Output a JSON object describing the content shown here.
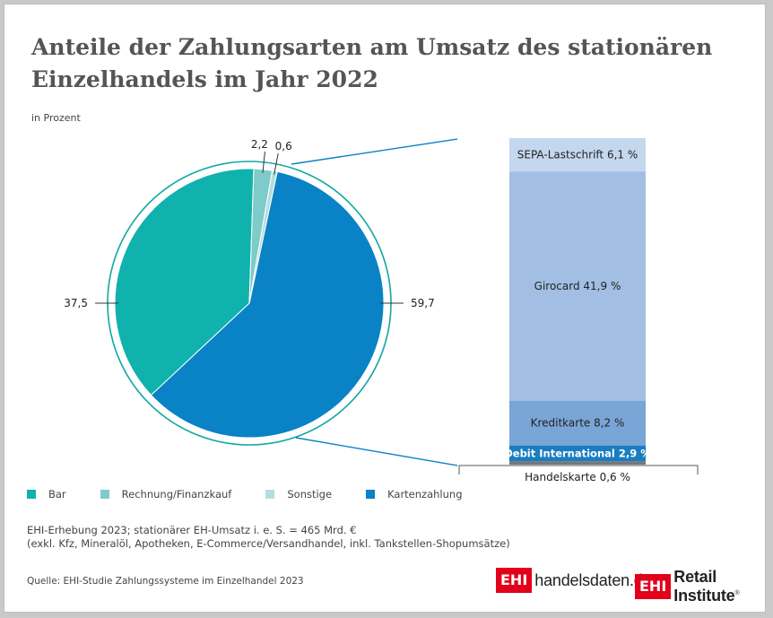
{
  "title_line1": "Anteile der Zahlungsarten am Umsatz des stationären",
  "title_line2": "Einzelhandels im Jahr 2022",
  "subtitle": "in Prozent",
  "chart_data": [
    {
      "type": "pie",
      "slices": [
        {
          "name": "Kartenzahlung",
          "value": 59.7,
          "label": "59,7",
          "color": "#0a82c6"
        },
        {
          "name": "Bar",
          "value": 37.5,
          "label": "37,5",
          "color": "#10b2ad"
        },
        {
          "name": "Rechnung/Finanzkauf",
          "value": 2.2,
          "label": "2,2",
          "color": "#7dccc9"
        },
        {
          "name": "Sonstige",
          "value": 0.6,
          "label": "0,6",
          "color": "#b2dfdc"
        }
      ]
    },
    {
      "type": "bar",
      "stacked": true,
      "segments": [
        {
          "name": "SEPA-Lastschrift",
          "value": 6.1,
          "label": "SEPA-Lastschrift 6,1 %",
          "color": "#c5d7ef"
        },
        {
          "name": "Girocard",
          "value": 41.9,
          "label": "Girocard 41,9 %",
          "color": "#a2bfe3"
        },
        {
          "name": "Kreditkarte",
          "value": 8.2,
          "label": "Kreditkarte 8,2 %",
          "color": "#7aa5d7"
        },
        {
          "name": "Debit International",
          "value": 2.9,
          "label": "Debit International 2,9 %",
          "color": "#1a7dc2"
        },
        {
          "name": "Handelskarte",
          "value": 0.6,
          "label": "Handelskarte 0,6 %",
          "color": "#777777"
        }
      ]
    }
  ],
  "legend": [
    {
      "label": "Bar",
      "color": "#10b2ad"
    },
    {
      "label": "Rechnung/Finanzkauf",
      "color": "#7dccc9"
    },
    {
      "label": "Sonstige",
      "color": "#b2dfdc"
    },
    {
      "label": "Kartenzahlung",
      "color": "#0a82c6"
    }
  ],
  "note_line1": "EHI-Erhebung 2023; stationärer EH-Umsatz i. e. S. = 465 Mrd. €",
  "note_line2": "(exkl. Kfz, Mineralöl, Apotheken, E-Commerce/Versandhandel, inkl. Tankstellen-Shopumsätze)",
  "source": "Quelle: EHI-Studie Zahlungssysteme im Einzelhandel 2023",
  "logo1": {
    "box": "EHI",
    "text": "handelsdaten.de"
  },
  "logo2": {
    "box": "EHI",
    "text": "Retail Institute",
    "mark": "®"
  }
}
